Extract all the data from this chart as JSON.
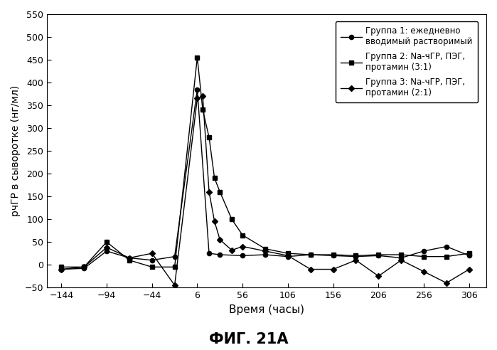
{
  "title": "ФИГ. 21А",
  "xlabel": "Время (часы)",
  "ylabel": "рчГР в сыворотке (нг/мл)",
  "xlim": [
    -160,
    325
  ],
  "ylim": [
    -50,
    550
  ],
  "xticks": [
    -144,
    -94,
    -44,
    6,
    56,
    106,
    156,
    206,
    256,
    306
  ],
  "yticks": [
    -50,
    0,
    50,
    100,
    150,
    200,
    250,
    300,
    350,
    400,
    450,
    500,
    550
  ],
  "group1_label": "Группа 1: ежедневно\nвводимый растворимый",
  "group2_label": "Группа 2: Na-чГР, ПЭГ,\nпротамин (3:1)",
  "group3_label": "Группа 3: Na-чГР, ПЭГ,\nпротамин (2:1)",
  "group1_x": [
    -144,
    -119,
    -94,
    -69,
    -44,
    -19,
    6,
    19,
    31,
    56,
    81,
    106,
    131,
    156,
    181,
    206,
    231,
    256,
    281,
    306
  ],
  "group1_y": [
    -10,
    -8,
    30,
    15,
    10,
    18,
    385,
    25,
    22,
    20,
    22,
    18,
    22,
    20,
    18,
    20,
    15,
    30,
    40,
    20
  ],
  "group2_x": [
    -144,
    -119,
    -94,
    -69,
    -44,
    -19,
    6,
    12,
    19,
    25,
    31,
    44,
    56,
    81,
    106,
    131,
    156,
    181,
    206,
    231,
    256,
    281,
    306
  ],
  "group2_y": [
    -5,
    -5,
    50,
    10,
    -5,
    -5,
    455,
    340,
    280,
    190,
    160,
    100,
    65,
    35,
    25,
    22,
    22,
    20,
    22,
    22,
    18,
    18,
    25
  ],
  "group3_x": [
    -144,
    -119,
    -94,
    -69,
    -44,
    -19,
    6,
    12,
    19,
    25,
    31,
    44,
    56,
    81,
    106,
    131,
    156,
    181,
    206,
    231,
    256,
    281,
    306
  ],
  "group3_y": [
    -10,
    -5,
    38,
    15,
    25,
    -45,
    365,
    370,
    160,
    95,
    55,
    32,
    40,
    30,
    20,
    -10,
    -10,
    10,
    -25,
    10,
    -15,
    -40,
    -10
  ],
  "bg_color": "#ffffff",
  "line_color": "#000000"
}
